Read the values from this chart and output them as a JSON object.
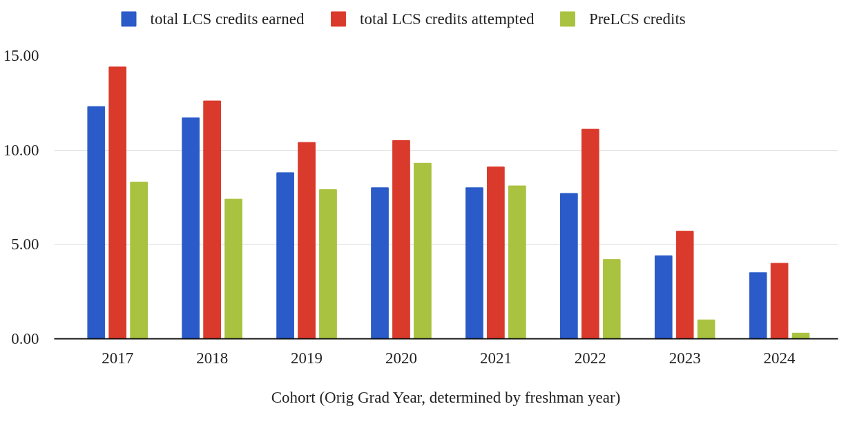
{
  "chart_data": {
    "type": "bar",
    "categories": [
      "2017",
      "2018",
      "2019",
      "2020",
      "2021",
      "2022",
      "2023",
      "2024"
    ],
    "series": [
      {
        "name": "total LCS credits earned",
        "color": "#2a5bc8",
        "values": [
          12.3,
          11.7,
          8.8,
          8.0,
          8.0,
          7.7,
          4.4,
          3.5
        ]
      },
      {
        "name": "total LCS credits attempted",
        "color": "#d93a2b",
        "values": [
          14.4,
          12.6,
          10.4,
          10.5,
          9.1,
          11.1,
          5.7,
          4.0
        ]
      },
      {
        "name": "PreLCS credits",
        "color": "#a9c23f",
        "values": [
          8.3,
          7.4,
          7.9,
          9.3,
          8.1,
          4.2,
          1.0,
          0.3
        ]
      }
    ],
    "xlabel": "Cohort (Orig Grad Year, determined by freshman year)",
    "ylim": [
      0,
      15
    ],
    "yticks": [
      {
        "value": 0,
        "label": "0.00"
      },
      {
        "value": 5,
        "label": "5.00"
      },
      {
        "value": 10,
        "label": "10.00"
      },
      {
        "value": 15,
        "label": "15.00"
      }
    ],
    "grid": "y",
    "legend": "top"
  }
}
